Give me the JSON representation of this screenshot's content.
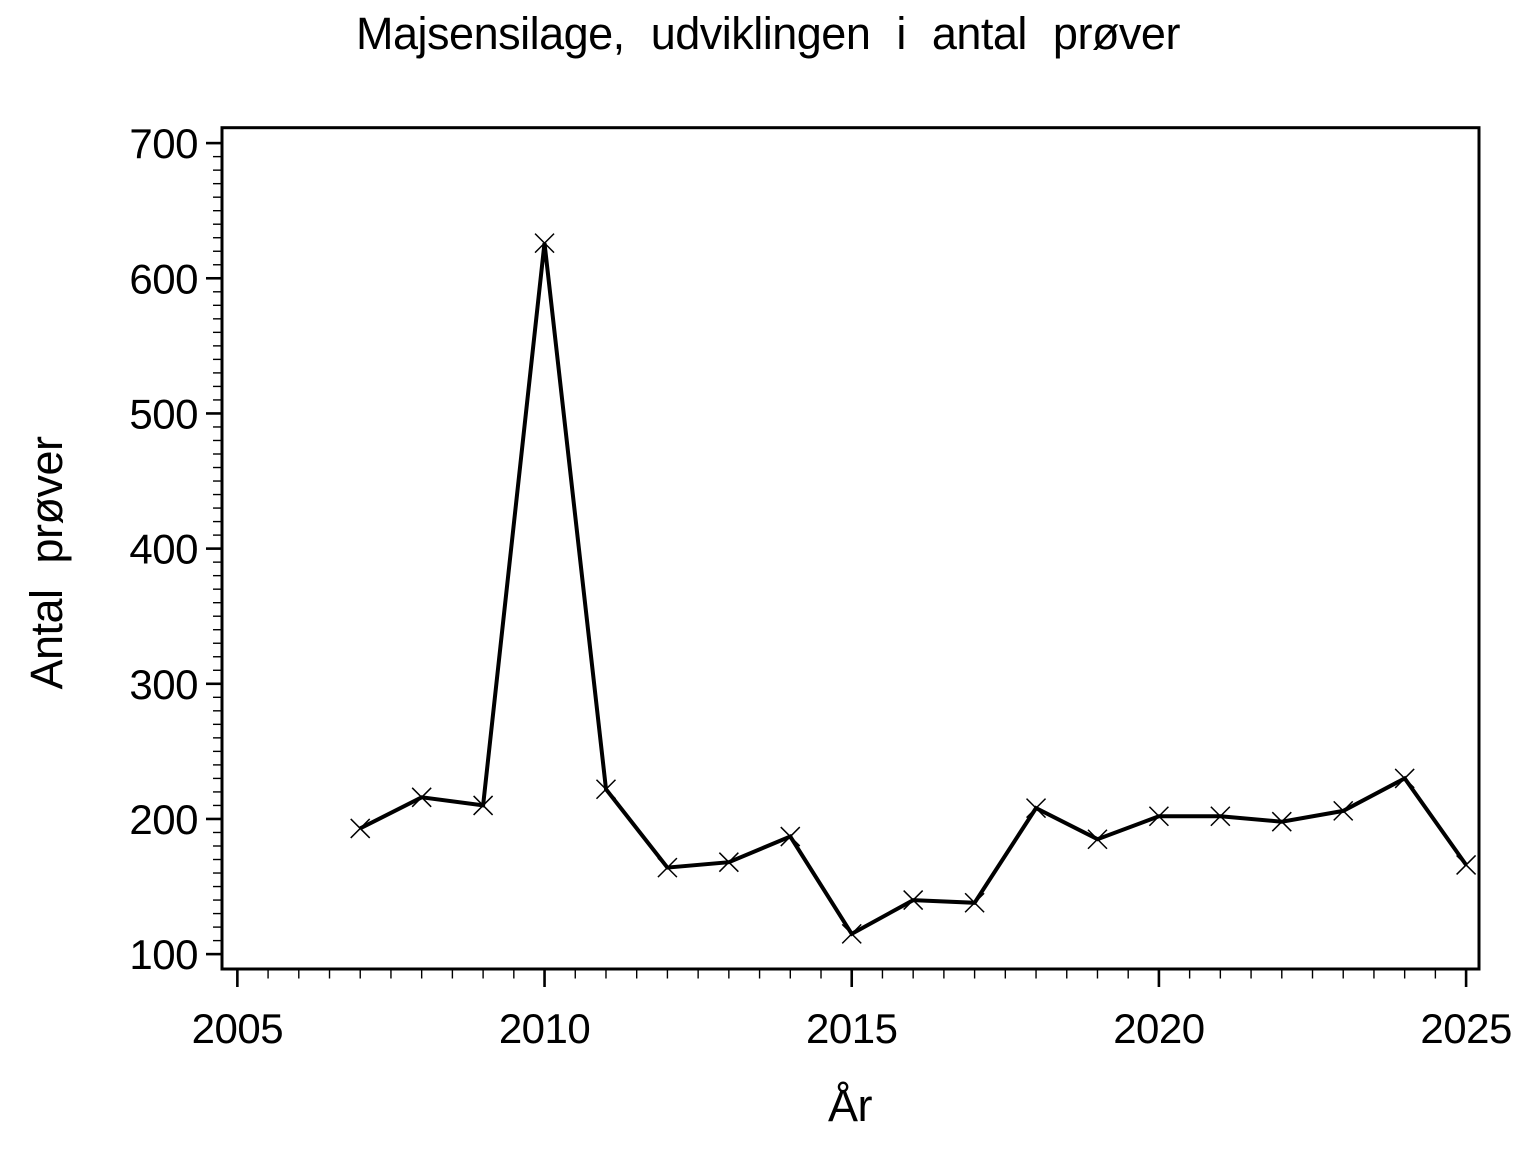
{
  "page": {
    "background": "#ffffff",
    "foreground": "#000000"
  },
  "chart_data": {
    "type": "line",
    "title": "Majsensilage, udviklingen i antal prøver",
    "xlabel": "År",
    "ylabel": "Antal prøver",
    "x": [
      2007,
      2008,
      2009,
      2010,
      2011,
      2012,
      2013,
      2014,
      2015,
      2016,
      2017,
      2018,
      2019,
      2020,
      2021,
      2022,
      2023,
      2024,
      2025
    ],
    "values": [
      193,
      216,
      210,
      626,
      222,
      164,
      168,
      187,
      115,
      140,
      138,
      208,
      185,
      202,
      202,
      198,
      206,
      230,
      166
    ],
    "series": [
      {
        "name": "Antal prøver",
        "values": [
          193,
          216,
          210,
          626,
          222,
          164,
          168,
          187,
          115,
          140,
          138,
          208,
          185,
          202,
          202,
          198,
          206,
          230,
          166
        ]
      }
    ],
    "xlim": [
      2004.75,
      2025.21
    ],
    "ylim": [
      89,
      711.4
    ],
    "x_ticks": {
      "major": [
        {
          "value": 2005,
          "label": "2005"
        },
        {
          "value": 2010,
          "label": "2010"
        },
        {
          "value": 2015,
          "label": "2015"
        },
        {
          "value": 2020,
          "label": "2020"
        },
        {
          "value": 2025,
          "label": "2025"
        }
      ],
      "minor_step": 0.5,
      "minor_range": [
        2005,
        2025
      ]
    },
    "y_ticks": {
      "major": [
        {
          "value": 100,
          "label": "100"
        },
        {
          "value": 200,
          "label": "200"
        },
        {
          "value": 300,
          "label": "300"
        },
        {
          "value": 400,
          "label": "400"
        },
        {
          "value": 500,
          "label": "500"
        },
        {
          "value": 600,
          "label": "600"
        },
        {
          "value": 700,
          "label": "700"
        }
      ],
      "minor_step": 10,
      "minor_range": [
        100,
        700
      ]
    },
    "line_color": "#000000",
    "marker": "x",
    "grid": false,
    "legend": "none"
  }
}
